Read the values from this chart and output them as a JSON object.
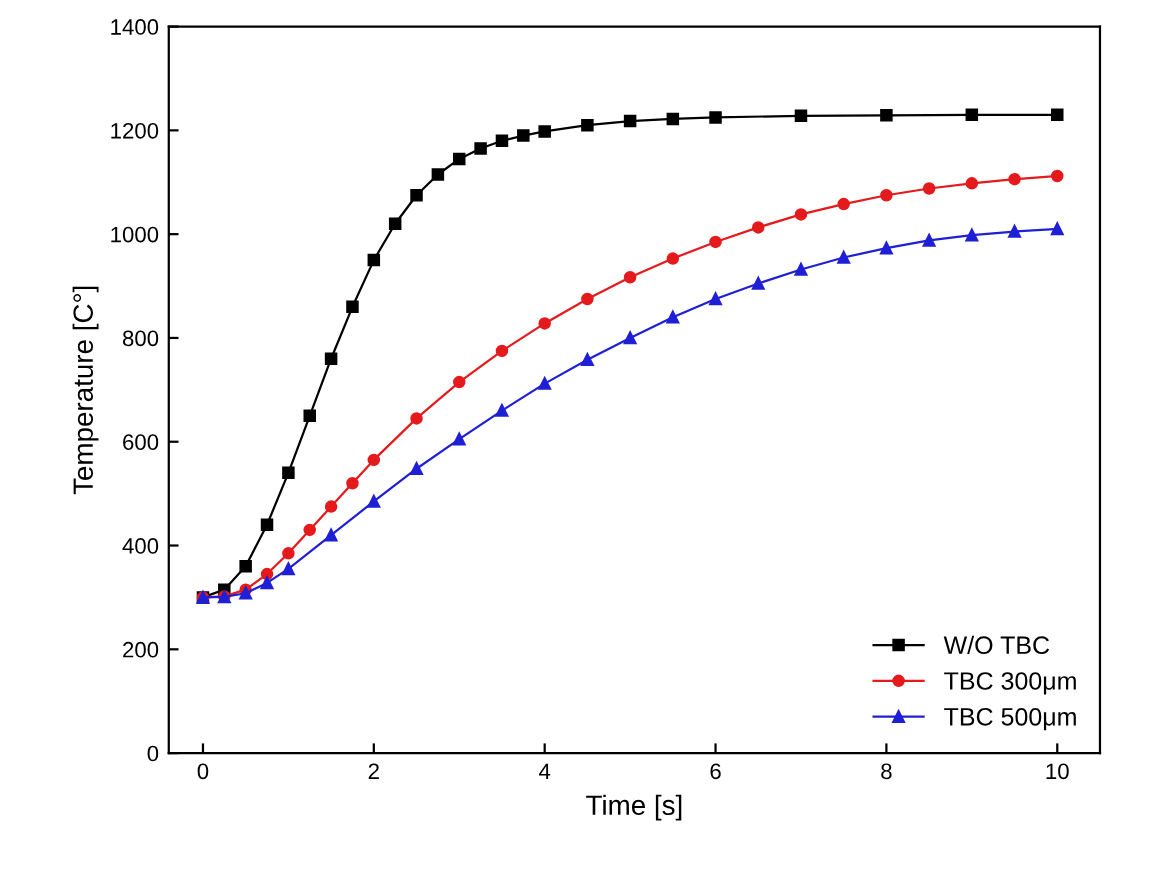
{
  "chart_data": {
    "type": "line",
    "xlabel": "Time [s]",
    "ylabel": "Temperature [C°]",
    "xlim": [
      -0.4,
      10.5
    ],
    "xticks": [
      0,
      2,
      4,
      6,
      8,
      10
    ],
    "ylim": [
      0,
      1400
    ],
    "yticks": [
      0,
      200,
      400,
      600,
      800,
      1000,
      1200,
      1400
    ],
    "grid": false,
    "legend": "bottom right",
    "line_style": "solid",
    "series": [
      {
        "name": "W/O TBC",
        "color": "#000000",
        "marker": "square",
        "x": [
          0,
          0.25,
          0.5,
          0.75,
          1,
          1.25,
          1.5,
          1.75,
          2,
          2.25,
          2.5,
          2.75,
          3,
          3.25,
          3.5,
          3.75,
          4,
          4.5,
          5,
          5.5,
          6,
          7,
          8,
          9,
          10
        ],
        "values": [
          300,
          315,
          360,
          440,
          540,
          650,
          760,
          860,
          950,
          1020,
          1075,
          1115,
          1145,
          1165,
          1180,
          1190,
          1198,
          1210,
          1218,
          1222,
          1225,
          1228,
          1229,
          1230,
          1230
        ]
      },
      {
        "name": "TBC 300μm",
        "color": "#e41a1c",
        "marker": "circle",
        "x": [
          0,
          0.25,
          0.5,
          0.75,
          1,
          1.25,
          1.5,
          1.75,
          2,
          2.5,
          3,
          3.5,
          4,
          4.5,
          5,
          5.5,
          6,
          6.5,
          7,
          7.5,
          8,
          8.5,
          9,
          9.5,
          10
        ],
        "values": [
          300,
          302,
          315,
          345,
          385,
          430,
          475,
          520,
          565,
          645,
          715,
          775,
          828,
          875,
          917,
          953,
          985,
          1013,
          1038,
          1058,
          1075,
          1088,
          1098,
          1106,
          1112
        ]
      },
      {
        "name": "TBC 500μm",
        "color": "#1f1fd6",
        "marker": "triangle",
        "x": [
          0,
          0.25,
          0.5,
          0.75,
          1,
          1.5,
          2,
          2.5,
          3,
          3.5,
          4,
          4.5,
          5,
          5.5,
          6,
          6.5,
          7,
          7.5,
          8,
          8.5,
          9,
          9.5,
          10
        ],
        "values": [
          300,
          301,
          308,
          328,
          355,
          420,
          485,
          548,
          605,
          660,
          712,
          758,
          800,
          840,
          875,
          905,
          932,
          955,
          973,
          988,
          998,
          1005,
          1010
        ]
      }
    ]
  }
}
